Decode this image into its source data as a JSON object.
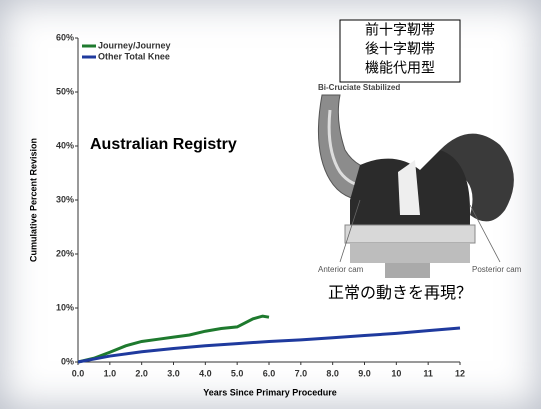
{
  "chart_data": {
    "type": "line",
    "annotation": "Australian Registry",
    "xlabel": "Years Since Primary Procedure",
    "ylabel": "Cumulative Percent Revision",
    "series": [
      {
        "name": "Journey/Journey",
        "color": "#1e7a2e",
        "x": [
          0,
          0.5,
          1.0,
          1.5,
          2.0,
          2.5,
          3.0,
          3.5,
          4.0,
          4.5,
          5.0,
          5.5,
          5.8,
          6.0
        ],
        "values": [
          0,
          0.7,
          1.8,
          3.0,
          3.8,
          4.2,
          4.6,
          5.0,
          5.7,
          6.2,
          6.5,
          8.0,
          8.5,
          8.3
        ]
      },
      {
        "name": "Other Total Knee",
        "color": "#1f3a9e",
        "x": [
          0,
          1,
          2,
          3,
          4,
          5,
          6,
          7,
          8,
          9,
          10,
          11,
          12
        ],
        "values": [
          0,
          1.1,
          1.9,
          2.5,
          3.0,
          3.4,
          3.8,
          4.1,
          4.5,
          4.9,
          5.3,
          5.8,
          6.3
        ]
      }
    ],
    "xlim": [
      0,
      12
    ],
    "xticks": [
      {
        "value": 0,
        "label": "0.0"
      },
      {
        "value": 1,
        "label": "1.0"
      },
      {
        "value": 2,
        "label": "2.0"
      },
      {
        "value": 3,
        "label": "3.0"
      },
      {
        "value": 4,
        "label": "4.0"
      },
      {
        "value": 5,
        "label": "5.0"
      },
      {
        "value": 6,
        "label": "6.0"
      },
      {
        "value": 7,
        "label": "7.0"
      },
      {
        "value": 8,
        "label": "8.0"
      },
      {
        "value": 9,
        "label": "9.0"
      },
      10,
      11,
      12
    ],
    "ylim": [
      0,
      60
    ],
    "yticks": [
      {
        "value": 0,
        "label": "0%"
      },
      {
        "value": 10,
        "label": "10%"
      },
      {
        "value": 20,
        "label": "20%"
      },
      {
        "value": 30,
        "label": "30%"
      },
      {
        "value": 40,
        "label": "40%"
      },
      {
        "value": 50,
        "label": "50%"
      },
      {
        "value": 60,
        "label": "60%"
      }
    ]
  },
  "image": {
    "box_lines": [
      "前十字靭帯",
      "後十字靭帯",
      "機能代用型"
    ],
    "caption": "Bi-Cruciate Stabilized",
    "left_label": "Anterior cam",
    "right_label": "Posterior cam",
    "question": "正常の動きを再現？"
  }
}
